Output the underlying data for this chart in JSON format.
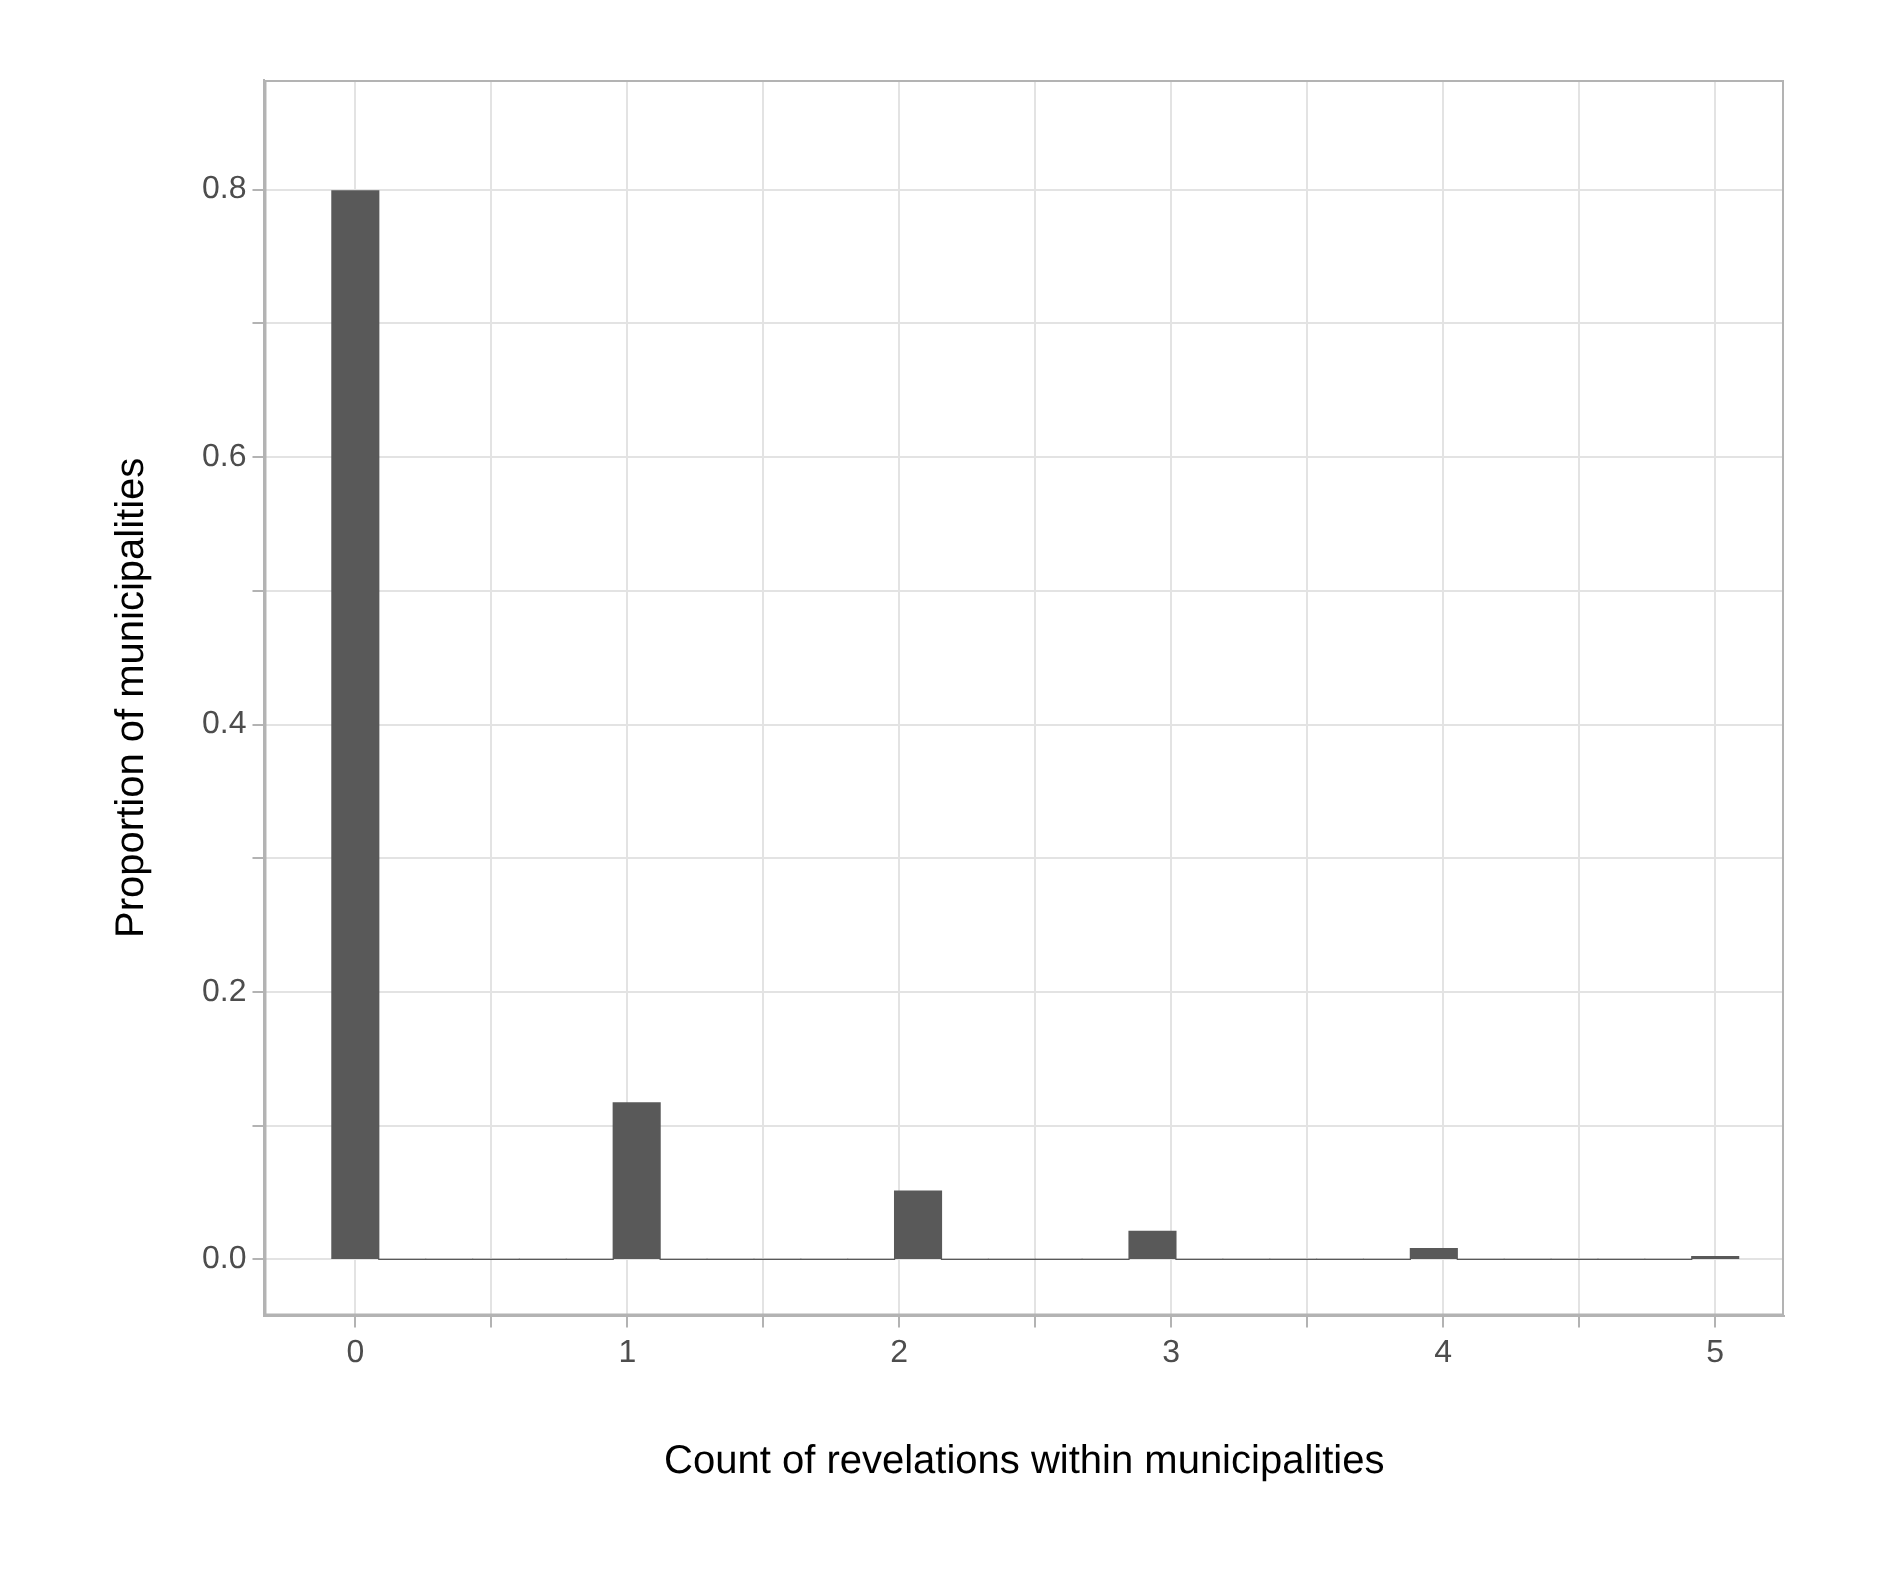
{
  "chart_data": {
    "type": "histogram",
    "xlabel": "Count of revelations within municipalities",
    "ylabel": "Proportion of municipalities",
    "bins": [
      -0.086,
      0.086,
      0.259,
      0.431,
      0.603,
      0.776,
      0.948,
      1.121,
      1.293,
      1.466,
      1.638,
      1.81,
      1.983,
      2.155,
      2.328,
      2.5,
      2.672,
      2.845,
      3.017,
      3.19,
      3.362,
      3.534,
      3.707,
      3.879,
      4.052,
      4.224,
      4.397,
      4.569,
      4.741,
      4.914,
      5.086
    ],
    "values": [
      0.799,
      0,
      0,
      0,
      0,
      0,
      0.117,
      0,
      0,
      0,
      0,
      0,
      0.051,
      0,
      0,
      0,
      0,
      0.021,
      0,
      0,
      0,
      0,
      0,
      0.008,
      0,
      0,
      0,
      0,
      0,
      0.002
    ],
    "color": "#595959",
    "xlim": [
      -0.334,
      5.253
    ],
    "ylim": [
      -0.042,
      0.882
    ],
    "xticks": [
      0,
      {
        "value": 0.5,
        "label": null
      },
      1,
      {
        "value": 1.5,
        "label": null
      },
      2,
      {
        "value": 2.5,
        "label": null
      },
      3,
      {
        "value": 3.5,
        "label": null
      },
      4,
      {
        "value": 4.5,
        "label": null
      },
      5
    ],
    "yticks": [
      {
        "value": 0,
        "label": "0.0"
      },
      {
        "value": 0.1,
        "label": null
      },
      0.2,
      {
        "value": 0.3,
        "label": null
      },
      0.4,
      {
        "value": 0.5,
        "label": null
      },
      0.6,
      {
        "value": 0.7,
        "label": null
      },
      0.8
    ],
    "grid": true,
    "legend": false
  }
}
